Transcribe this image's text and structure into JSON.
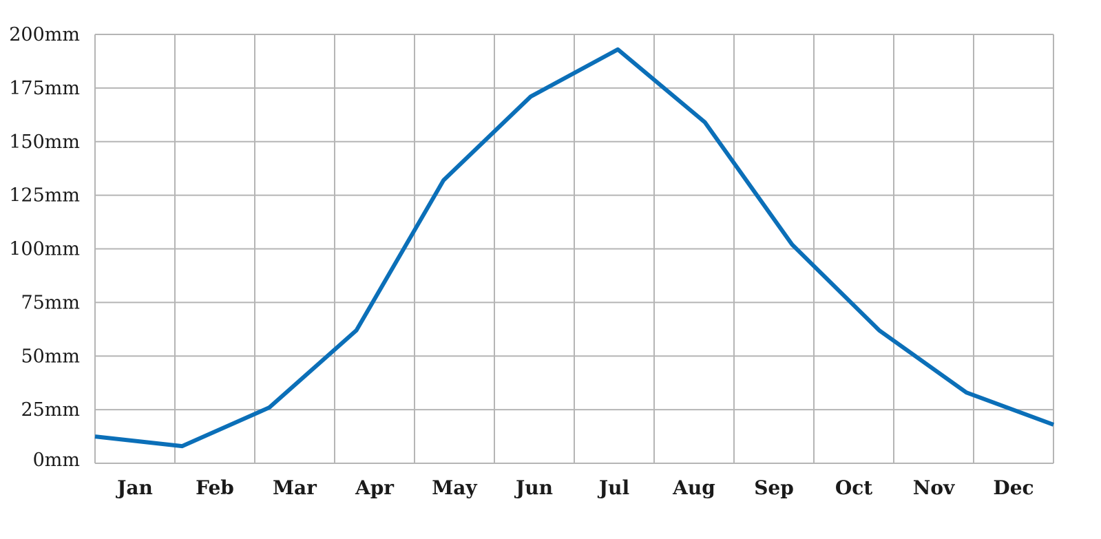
{
  "chart_data": {
    "type": "line",
    "title": "",
    "xlabel": "",
    "ylabel": "",
    "categories": [
      "Jan",
      "Feb",
      "Mar",
      "Apr",
      "May",
      "Jun",
      "Jul",
      "Aug",
      "Sep",
      "Oct",
      "Nov",
      "Dec"
    ],
    "series": [
      {
        "values": [
          12.5,
          8,
          26,
          62,
          132,
          171,
          193,
          159,
          102,
          62,
          33,
          18
        ]
      }
    ],
    "ylim": [
      0,
      200
    ],
    "yticks": [
      0,
      25,
      50,
      75,
      100,
      125,
      150,
      175,
      200
    ],
    "ytick_labels": [
      "0mm",
      "25mm",
      "50mm",
      "75mm",
      "100mm",
      "125mm",
      "150mm",
      "175mm",
      "200mm"
    ],
    "grid": true,
    "legend": "none",
    "colors": {
      "line": "#0b6fb8",
      "grid": "#b5b5b5"
    }
  }
}
